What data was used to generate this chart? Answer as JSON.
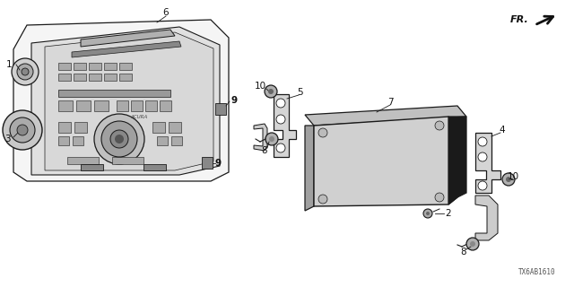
{
  "bg_color": "#ffffff",
  "diagram_code": "TX6AB1610",
  "fr_label": "FR.",
  "line_color": "#1a1a1a",
  "line_width": 0.9,
  "text_color": "#111111",
  "label_fontsize": 7.5
}
